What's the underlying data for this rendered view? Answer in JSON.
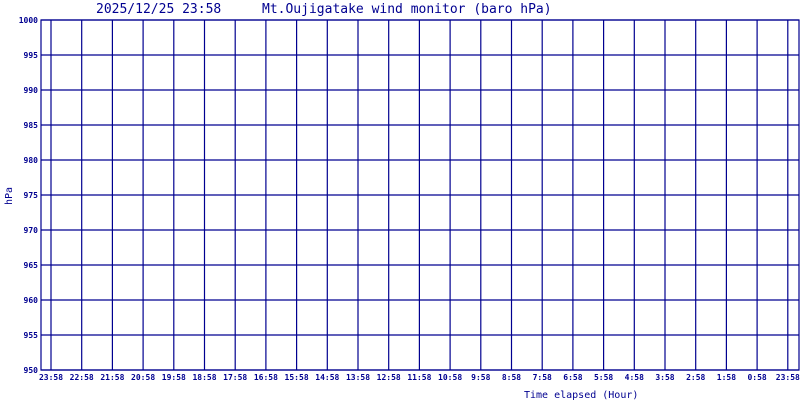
{
  "chart_data": {
    "type": "line",
    "timestamp": "2025/12/25 23:58",
    "title": "Mt.Oujigatake wind monitor (baro hPa)",
    "xlabel": "Time elapsed (Hour)",
    "ylabel": "hPa",
    "ylim": [
      950,
      1000
    ],
    "yticks": [
      "1000",
      "995",
      "990",
      "985",
      "980",
      "975",
      "970",
      "965",
      "960",
      "955",
      "950"
    ],
    "xticks": [
      "23:58",
      "22:58",
      "21:58",
      "20:58",
      "19:58",
      "18:58",
      "17:58",
      "16:58",
      "15:58",
      "14:58",
      "13:58",
      "12:58",
      "11:58",
      "10:58",
      "9:58",
      "8:58",
      "7:58",
      "6:58",
      "5:58",
      "4:58",
      "3:58",
      "2:58",
      "1:58",
      "0:58",
      "23:58"
    ],
    "series": [],
    "grid": true,
    "colors": {
      "grid": "#000090",
      "text": "#000090",
      "background": "#ffffff"
    }
  }
}
